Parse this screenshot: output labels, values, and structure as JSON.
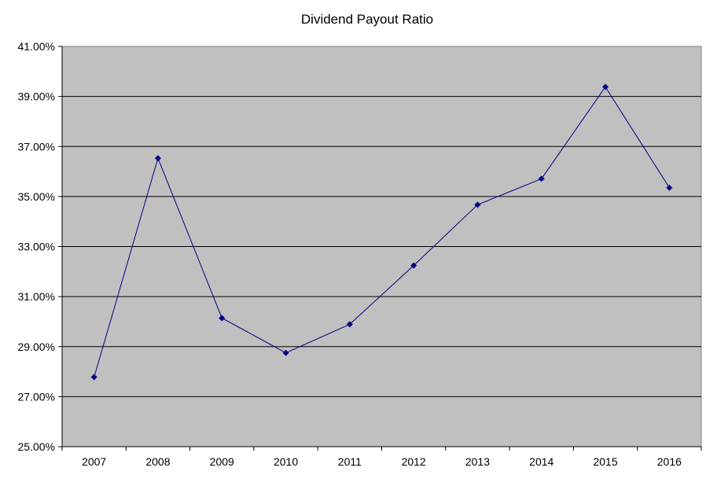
{
  "chart_data": {
    "type": "line",
    "title": "Dividend Payout Ratio",
    "xlabel": "",
    "ylabel": "",
    "categories": [
      "2007",
      "2008",
      "2009",
      "2010",
      "2011",
      "2012",
      "2013",
      "2014",
      "2015",
      "2016"
    ],
    "series": [
      {
        "values": [
          27.78,
          36.53,
          30.14,
          28.75,
          29.89,
          32.24,
          34.67,
          35.71,
          39.38,
          35.35
        ]
      }
    ],
    "ylim": [
      25,
      41
    ],
    "y_ticks": [
      25,
      27,
      29,
      31,
      33,
      35,
      37,
      39,
      41
    ],
    "y_tick_format": "percent-2dp",
    "grid": true,
    "legend": "none",
    "colors": {
      "plot_background": "#c0c0c0",
      "line": "#000080",
      "marker": "#000080",
      "gridline": "#000000"
    }
  }
}
